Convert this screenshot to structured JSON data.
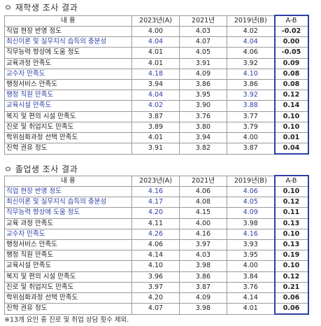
{
  "section1": {
    "title": "ㅇ 재학생 조사 결과",
    "headers": [
      "내    용",
      "2023년(A)",
      "2021년",
      "2019년(B)",
      "A-B"
    ],
    "rows": [
      {
        "item": "직업 현장 반영 정도",
        "y2023": "4.00",
        "y2021": "4.03",
        "y2019": "4.02",
        "diff": "-0.02",
        "hl": false
      },
      {
        "item": "최신이론 및 실무지식 습득의 충분성",
        "y2023": "4.04",
        "y2021": "4.07",
        "y2019": "4.04",
        "diff": "0.00",
        "hl": true
      },
      {
        "item": "직무능력 향상에 도움 정도",
        "y2023": "4.01",
        "y2021": "4.05",
        "y2019": "4.06",
        "diff": "-0.05",
        "hl": false
      },
      {
        "item": "교육과정 만족도",
        "y2023": "4.01",
        "y2021": "3.91",
        "y2019": "3.92",
        "diff": "0.09",
        "hl": false
      },
      {
        "item": "교수자 만족도",
        "y2023": "4.18",
        "y2021": "4.09",
        "y2019": "4.10",
        "diff": "0.08",
        "hl": true
      },
      {
        "item": "행정서비스 만족도",
        "y2023": "3.94",
        "y2021": "3.86",
        "y2019": "3.86",
        "diff": "0.08",
        "hl": false
      },
      {
        "item": "행정 직원 만족도",
        "y2023": "4.04",
        "y2021": "3.95",
        "y2019": "3.92",
        "diff": "0.12",
        "hl": true
      },
      {
        "item": "교육시설 만족도",
        "y2023": "4.02",
        "y2021": "3.90",
        "y2019": "3.88",
        "diff": "0.14",
        "hl": true
      },
      {
        "item": "복지 및 편의 시설 만족도",
        "y2023": "3.87",
        "y2021": "3.76",
        "y2019": "3.77",
        "diff": "0.10",
        "hl": false
      },
      {
        "item": "진로 및 취업지도 만족도",
        "y2023": "3.89",
        "y2021": "3.80",
        "y2019": "3.79",
        "diff": "0.10",
        "hl": false
      },
      {
        "item": "학위심화과정 선택 만족도",
        "y2023": "4.01",
        "y2021": "3.94",
        "y2019": "4.00",
        "diff": "0.01",
        "hl": false
      },
      {
        "item": "진학 권유 정도",
        "y2023": "3.91",
        "y2021": "3.82",
        "y2019": "3.87",
        "diff": "0.04",
        "hl": false
      }
    ]
  },
  "section2": {
    "title": "ㅇ 졸업생 조사 결과",
    "headers": [
      "내    용",
      "2023년(A)",
      "2021년",
      "2019년(B)",
      "A-B"
    ],
    "rows": [
      {
        "item": "직업 현장 반영 정도",
        "y2023": "4.16",
        "y2021": "4.06",
        "y2019": "4.06",
        "diff": "0.10",
        "hl": true
      },
      {
        "item": "최신이론 및 실무지식 습득의 충분성",
        "y2023": "4.17",
        "y2021": "4.08",
        "y2019": "4.05",
        "diff": "0.12",
        "hl": true
      },
      {
        "item": "직무능력 향상에 도움 정도",
        "y2023": "4.20",
        "y2021": "4.15",
        "y2019": "4.09",
        "diff": "0.11",
        "hl": true
      },
      {
        "item": "교육 과정 만족도",
        "y2023": "4.11",
        "y2021": "4.00",
        "y2019": "3.98",
        "diff": "0.13",
        "hl": false
      },
      {
        "item": "교수자 만족도",
        "y2023": "4.26",
        "y2021": "4.16",
        "y2019": "4.16",
        "diff": "0.10",
        "hl": true
      },
      {
        "item": "행정서비스 만족도",
        "y2023": "4.06",
        "y2021": "3.97",
        "y2019": "3.93",
        "diff": "0.13",
        "hl": false
      },
      {
        "item": "행정 직원 만족도",
        "y2023": "4.14",
        "y2021": "4.03",
        "y2019": "3.95",
        "diff": "0.19",
        "hl": false
      },
      {
        "item": "교육시설 만족도",
        "y2023": "4.10",
        "y2021": "3.98",
        "y2019": "4.00",
        "diff": "0.10",
        "hl": false
      },
      {
        "item": "복지 및 편의 시설 만족도",
        "y2023": "3.96",
        "y2021": "3.86",
        "y2019": "3.84",
        "diff": "0.12",
        "hl": false
      },
      {
        "item": "진로 및 취업지도 만족도",
        "y2023": "3.97",
        "y2021": "3.87",
        "y2019": "3.76",
        "diff": "0.21",
        "hl": false
      },
      {
        "item": "학위심화과정 선택 만족도",
        "y2023": "4.20",
        "y2021": "4.09",
        "y2019": "4.14",
        "diff": "0.06",
        "hl": false
      },
      {
        "item": "진학 권유 정도",
        "y2023": "4.07",
        "y2021": "3.98",
        "y2019": "4.01",
        "diff": "0.06",
        "hl": false
      }
    ]
  },
  "footnote": "※13개 요인 중 진로 및 취업 상담 횟수 제외."
}
